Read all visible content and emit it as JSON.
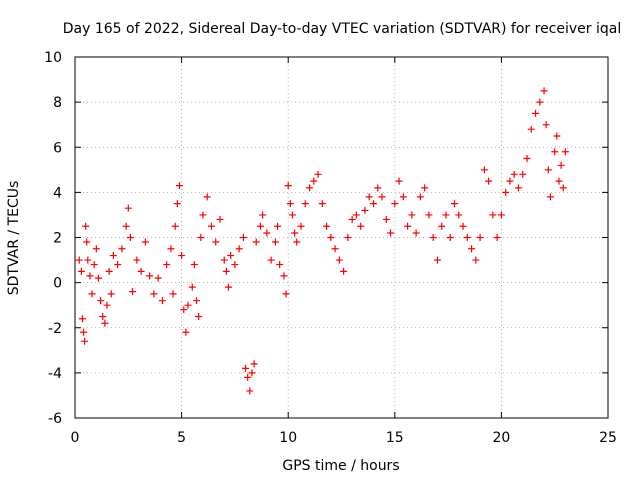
{
  "chart_data": {
    "type": "scatter",
    "title": "Day 165 of 2022, Sidereal Day-to-day VTEC variation (SDTVAR) for receiver iqal",
    "xlabel": "GPS time / hours",
    "ylabel": "SDTVAR / TECUs",
    "xlim": [
      0,
      25
    ],
    "ylim": [
      -6,
      10
    ],
    "xticks": [
      0,
      5,
      10,
      15,
      20,
      25
    ],
    "xtick_labels": [
      "0",
      "5",
      "10",
      "15",
      "20",
      "25"
    ],
    "yticks": [
      -6,
      -4,
      -2,
      0,
      2,
      4,
      6,
      8,
      10
    ],
    "ytick_labels": [
      "-6",
      "-4",
      "-2",
      "0",
      "2",
      "4",
      "6",
      "8",
      "10"
    ],
    "grid": true,
    "marker": "+",
    "color": "#ff0000",
    "series": [
      {
        "name": "SDTVAR",
        "points": [
          [
            0.2,
            1.0
          ],
          [
            0.3,
            0.5
          ],
          [
            0.35,
            -1.6
          ],
          [
            0.4,
            -2.2
          ],
          [
            0.45,
            -2.6
          ],
          [
            0.5,
            2.5
          ],
          [
            0.55,
            1.8
          ],
          [
            0.6,
            1.0
          ],
          [
            0.7,
            0.3
          ],
          [
            0.8,
            -0.5
          ],
          [
            0.9,
            0.8
          ],
          [
            1.0,
            1.5
          ],
          [
            1.1,
            0.2
          ],
          [
            1.2,
            -0.8
          ],
          [
            1.3,
            -1.5
          ],
          [
            1.4,
            -1.8
          ],
          [
            1.5,
            -1.0
          ],
          [
            1.6,
            0.5
          ],
          [
            1.7,
            -0.5
          ],
          [
            1.8,
            1.2
          ],
          [
            2.0,
            0.8
          ],
          [
            2.2,
            1.5
          ],
          [
            2.4,
            2.5
          ],
          [
            2.5,
            3.3
          ],
          [
            2.6,
            2.0
          ],
          [
            2.7,
            -0.4
          ],
          [
            2.9,
            1.0
          ],
          [
            3.1,
            0.5
          ],
          [
            3.3,
            1.8
          ],
          [
            3.5,
            0.3
          ],
          [
            3.7,
            -0.5
          ],
          [
            3.9,
            0.2
          ],
          [
            4.1,
            -0.8
          ],
          [
            4.3,
            0.8
          ],
          [
            4.5,
            1.5
          ],
          [
            4.6,
            -0.5
          ],
          [
            4.7,
            2.5
          ],
          [
            4.8,
            3.5
          ],
          [
            4.9,
            4.3
          ],
          [
            5.0,
            1.2
          ],
          [
            5.1,
            -1.2
          ],
          [
            5.2,
            -2.2
          ],
          [
            5.3,
            -1.0
          ],
          [
            5.5,
            -0.2
          ],
          [
            5.6,
            0.8
          ],
          [
            5.7,
            -0.8
          ],
          [
            5.8,
            -1.5
          ],
          [
            5.9,
            2.0
          ],
          [
            6.0,
            3.0
          ],
          [
            6.2,
            3.8
          ],
          [
            6.4,
            2.5
          ],
          [
            6.6,
            1.8
          ],
          [
            6.8,
            2.8
          ],
          [
            7.0,
            1.0
          ],
          [
            7.1,
            0.5
          ],
          [
            7.2,
            -0.2
          ],
          [
            7.3,
            1.2
          ],
          [
            7.5,
            0.8
          ],
          [
            7.7,
            1.5
          ],
          [
            7.9,
            2.0
          ],
          [
            8.0,
            -3.8
          ],
          [
            8.1,
            -4.2
          ],
          [
            8.2,
            -4.8
          ],
          [
            8.3,
            -4.0
          ],
          [
            8.4,
            -3.6
          ],
          [
            8.5,
            1.8
          ],
          [
            8.7,
            2.5
          ],
          [
            8.8,
            3.0
          ],
          [
            9.0,
            2.2
          ],
          [
            9.2,
            1.0
          ],
          [
            9.4,
            1.8
          ],
          [
            9.5,
            2.5
          ],
          [
            9.6,
            0.8
          ],
          [
            9.8,
            0.3
          ],
          [
            9.9,
            -0.5
          ],
          [
            10.0,
            4.3
          ],
          [
            10.1,
            3.5
          ],
          [
            10.2,
            3.0
          ],
          [
            10.3,
            2.2
          ],
          [
            10.4,
            1.8
          ],
          [
            10.6,
            2.5
          ],
          [
            10.8,
            3.5
          ],
          [
            11.0,
            4.2
          ],
          [
            11.2,
            4.5
          ],
          [
            11.4,
            4.8
          ],
          [
            11.6,
            3.5
          ],
          [
            11.8,
            2.5
          ],
          [
            12.0,
            2.0
          ],
          [
            12.2,
            1.5
          ],
          [
            12.4,
            1.0
          ],
          [
            12.6,
            0.5
          ],
          [
            12.8,
            2.0
          ],
          [
            13.0,
            2.8
          ],
          [
            13.2,
            3.0
          ],
          [
            13.4,
            2.5
          ],
          [
            13.6,
            3.2
          ],
          [
            13.8,
            3.8
          ],
          [
            14.0,
            3.5
          ],
          [
            14.2,
            4.2
          ],
          [
            14.4,
            3.8
          ],
          [
            14.6,
            2.8
          ],
          [
            14.8,
            2.2
          ],
          [
            15.0,
            3.5
          ],
          [
            15.2,
            4.5
          ],
          [
            15.4,
            3.8
          ],
          [
            15.6,
            2.5
          ],
          [
            15.8,
            3.0
          ],
          [
            16.0,
            2.2
          ],
          [
            16.2,
            3.8
          ],
          [
            16.4,
            4.2
          ],
          [
            16.6,
            3.0
          ],
          [
            16.8,
            2.0
          ],
          [
            17.0,
            1.0
          ],
          [
            17.2,
            2.5
          ],
          [
            17.4,
            3.0
          ],
          [
            17.6,
            2.0
          ],
          [
            17.8,
            3.5
          ],
          [
            18.0,
            3.0
          ],
          [
            18.2,
            2.5
          ],
          [
            18.4,
            2.0
          ],
          [
            18.6,
            1.5
          ],
          [
            18.8,
            1.0
          ],
          [
            19.0,
            2.0
          ],
          [
            19.2,
            5.0
          ],
          [
            19.4,
            4.5
          ],
          [
            19.6,
            3.0
          ],
          [
            19.8,
            2.0
          ],
          [
            20.0,
            3.0
          ],
          [
            20.2,
            4.0
          ],
          [
            20.4,
            4.5
          ],
          [
            20.6,
            4.8
          ],
          [
            20.8,
            4.2
          ],
          [
            21.0,
            4.8
          ],
          [
            21.2,
            5.5
          ],
          [
            21.4,
            6.8
          ],
          [
            21.6,
            7.5
          ],
          [
            21.8,
            8.0
          ],
          [
            22.0,
            8.5
          ],
          [
            22.1,
            7.0
          ],
          [
            22.2,
            5.0
          ],
          [
            22.3,
            3.8
          ],
          [
            22.5,
            5.8
          ],
          [
            22.6,
            6.5
          ],
          [
            22.7,
            4.5
          ],
          [
            22.8,
            5.2
          ],
          [
            22.9,
            4.2
          ],
          [
            23.0,
            5.8
          ]
        ]
      }
    ]
  }
}
